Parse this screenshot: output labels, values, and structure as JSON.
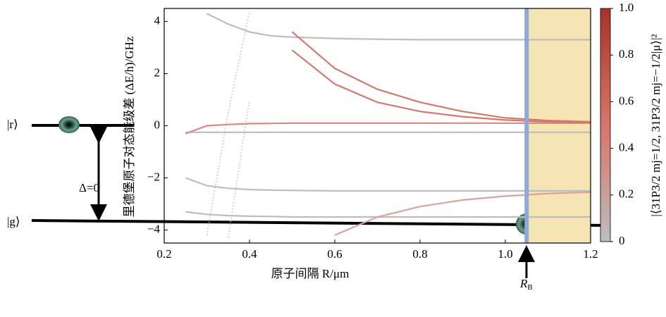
{
  "chart_data": {
    "type": "line",
    "y_label": "里德堡原子对态能级差 (ΔE/h)/GHz",
    "x_label": "原子间隔 R/μm",
    "xlim": [
      0.2,
      1.2
    ],
    "xticks": [
      0.2,
      0.4,
      0.6,
      0.8,
      {
        "value": 1,
        "label": "1.0"
      },
      1.2
    ],
    "ylim": [
      -4.5,
      4.5
    ],
    "yticks": [
      {
        "value": -4,
        "label": "−4"
      },
      {
        "value": -2,
        "label": "−2"
      },
      0,
      2,
      4
    ],
    "x": [
      0.25,
      0.3,
      0.35,
      0.4,
      0.45,
      0.5,
      0.6,
      0.7,
      0.8,
      0.9,
      1.0,
      1.1,
      1.2
    ],
    "series": [
      {
        "color": "#bdbdbd",
        "values": [
          null,
          4.3,
          3.9,
          3.6,
          3.45,
          3.4,
          3.35,
          3.32,
          3.3,
          3.3,
          3.3,
          3.3,
          3.3
        ]
      },
      {
        "color": "#bdbdbd",
        "values": [
          -0.25,
          -0.25,
          -0.25,
          -0.25,
          -0.25,
          -0.25,
          -0.25,
          -0.25,
          -0.25,
          -0.25,
          -0.25,
          -0.25,
          -0.25
        ]
      },
      {
        "color": "#bdbdbd",
        "values": [
          -2.0,
          -2.3,
          -2.4,
          -2.45,
          -2.47,
          -2.48,
          -2.5,
          -2.5,
          -2.5,
          -2.5,
          -2.5,
          -2.5,
          -2.5
        ]
      },
      {
        "color": "#bdbdbd",
        "values": [
          -3.3,
          -3.4,
          -3.45,
          -3.47,
          -3.48,
          -3.5,
          -3.5,
          -3.5,
          -3.5,
          -3.5,
          -3.5,
          -3.5,
          -3.5
        ]
      },
      {
        "color": "#bdbdbd",
        "values": [
          null,
          -4.2,
          0.5,
          4.4,
          null,
          null,
          null,
          null,
          null,
          null,
          null,
          null,
          null
        ],
        "dash": "dotted"
      },
      {
        "color": "#bdbdbd",
        "values": [
          null,
          null,
          -4.3,
          1.0,
          null,
          null,
          null,
          null,
          null,
          null,
          null,
          null,
          null
        ],
        "dash": "dotted"
      },
      {
        "color": "#d98a80",
        "values": [
          -0.3,
          0.0,
          0.05,
          0.08,
          0.09,
          0.1,
          0.1,
          0.1,
          0.1,
          0.1,
          0.1,
          0.1,
          0.1
        ]
      },
      {
        "color": "#d07a6e",
        "values": [
          null,
          null,
          null,
          null,
          null,
          3.6,
          2.2,
          1.4,
          0.9,
          0.55,
          0.3,
          0.2,
          0.15
        ]
      },
      {
        "color": "#d07a6e",
        "values": [
          null,
          null,
          null,
          null,
          null,
          2.9,
          1.6,
          0.9,
          0.55,
          0.35,
          0.22,
          0.15,
          0.12
        ]
      },
      {
        "color": "#d9a39b",
        "values": [
          null,
          null,
          null,
          null,
          null,
          null,
          -4.2,
          -3.5,
          -3.1,
          -2.85,
          -2.7,
          -2.6,
          -2.55
        ]
      }
    ],
    "shaded_region": {
      "xlim": [
        1.05,
        1.2
      ],
      "color": "#f6e4b4"
    },
    "marker_line": {
      "x": 1.05,
      "color": "#8fa9d6"
    },
    "colorbar": {
      "label": "|⟨31P3/2 mj=1/2, 31P3/2 mj=−1/2|μ⟩|²",
      "ylim": [
        0,
        1
      ],
      "yticks": [
        0,
        0.2,
        0.4,
        0.6,
        0.8,
        {
          "value": 1,
          "label": "1.0"
        }
      ],
      "colors": [
        "#bdbdbd",
        "#d9756a",
        "#a8322a"
      ]
    },
    "annotations": {
      "r_state": "|r⟩",
      "g_state": "|g⟩",
      "detuning": "Δ=0",
      "rb": "R",
      "rb_sub": "B"
    }
  }
}
